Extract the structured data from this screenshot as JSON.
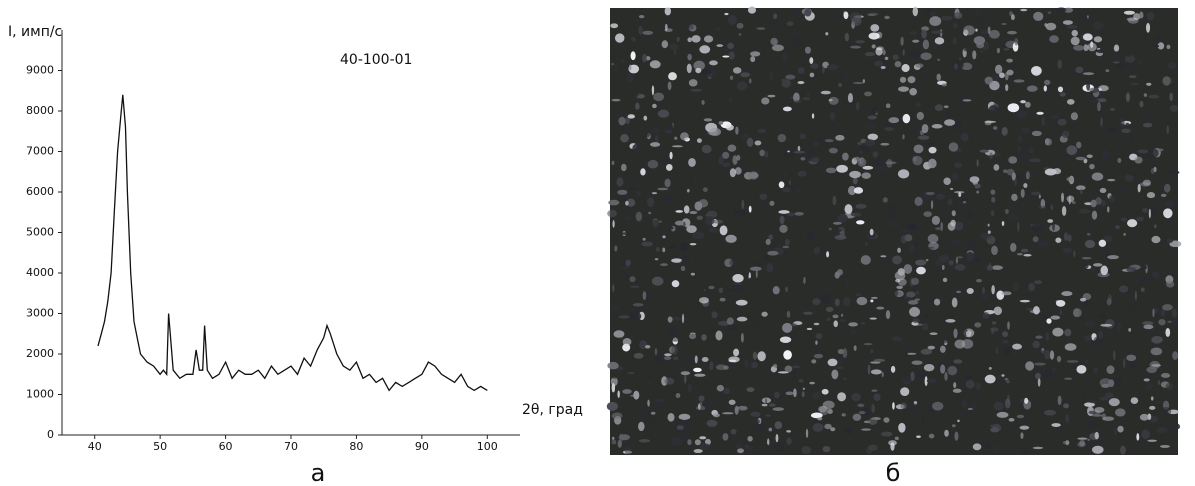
{
  "chart_data": {
    "type": "line",
    "x_label": "2θ, град",
    "y_label": "I, имп/с",
    "annotation": "40-100-01",
    "x": [
      40.5,
      41,
      41.5,
      42,
      42.5,
      43,
      43.5,
      44,
      44.3,
      44.7,
      45,
      45.5,
      46,
      46.5,
      47,
      48,
      49,
      50,
      50.5,
      51,
      51.3,
      52,
      53,
      54,
      55,
      55.5,
      56,
      56.5,
      56.8,
      57.2,
      58,
      59,
      60,
      61,
      62,
      63,
      64,
      65,
      66,
      67,
      68,
      69,
      70,
      71,
      72,
      73,
      74,
      75,
      75.5,
      76,
      77,
      78,
      79,
      80,
      81,
      82,
      83,
      84,
      85,
      86,
      87,
      88,
      89,
      90,
      91,
      92,
      93,
      94,
      95,
      96,
      97,
      98,
      99,
      100
    ],
    "values": [
      2200,
      2500,
      2800,
      3300,
      4000,
      5500,
      7000,
      7900,
      8400,
      7600,
      6000,
      4000,
      2800,
      2400,
      2000,
      1800,
      1700,
      1500,
      1600,
      1500,
      3000,
      1600,
      1400,
      1500,
      1500,
      2100,
      1600,
      1600,
      2700,
      1600,
      1400,
      1500,
      1800,
      1400,
      1600,
      1500,
      1500,
      1600,
      1400,
      1700,
      1500,
      1600,
      1700,
      1500,
      1900,
      1700,
      2100,
      2400,
      2700,
      2500,
      2000,
      1700,
      1600,
      1800,
      1400,
      1500,
      1300,
      1400,
      1100,
      1300,
      1200,
      1300,
      1400,
      1500,
      1800,
      1700,
      1500,
      1400,
      1300,
      1500,
      1200,
      1100,
      1200,
      1100
    ],
    "color": "#111111",
    "xlim": [
      35,
      105
    ],
    "xticks": [
      40,
      50,
      60,
      70,
      80,
      90,
      100
    ],
    "ylim": [
      0,
      10000
    ],
    "yticks": [
      0,
      1000,
      2000,
      3000,
      4000,
      5000,
      6000,
      7000,
      8000,
      9000
    ]
  },
  "panels": {
    "left_label": "а",
    "right_label": "б"
  }
}
